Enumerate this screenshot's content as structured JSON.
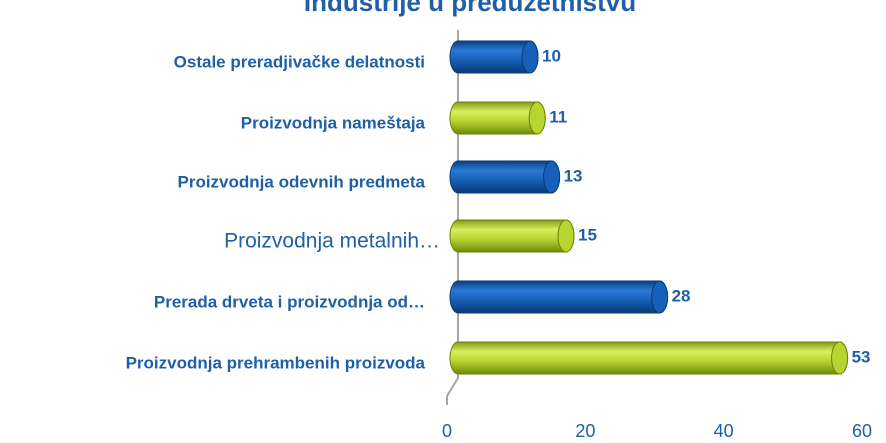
{
  "chart_data": {
    "type": "bar",
    "orientation": "horizontal",
    "title": "Industrije u preduzetništvu",
    "categories": [
      "Ostale preradjivačke delatnosti",
      "Proizvodnja nameštaja",
      "Proizvodnja odevnih predmeta",
      "Proizvodnja metalnih…",
      "Prerada drveta i proizvodnja od…",
      "Proizvodnja prehrambenih proizvoda"
    ],
    "values": [
      10,
      11,
      13,
      15,
      28,
      53
    ],
    "colors": [
      "#1560b8",
      "#b8d430",
      "#1560b8",
      "#b8d430",
      "#1560b8",
      "#b8d430"
    ],
    "xlim": [
      0,
      60
    ],
    "xticks": [
      0,
      20,
      40,
      60
    ],
    "grid": false
  }
}
